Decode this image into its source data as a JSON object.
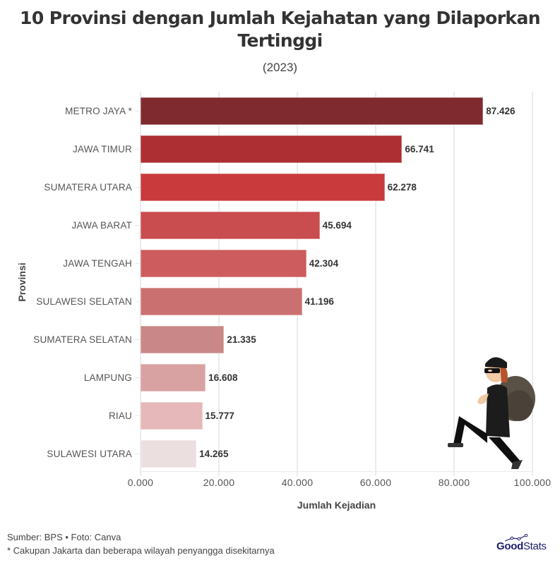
{
  "header": {
    "title_line1": "10 Provinsi dengan Jumlah Kejahatan yang Dilaporkan",
    "title_line2": "Tertinggi",
    "subtitle": "(2023)"
  },
  "axes": {
    "xlabel": "Jumlah Kejadian",
    "ylabel": "Provinsi",
    "xticks": [
      "0.000",
      "20.000",
      "40.000",
      "60.000",
      "80.000",
      "100.000"
    ]
  },
  "bars": [
    {
      "label": "METRO JAYA *",
      "value": 87426,
      "display": "87.426",
      "color": "#7f2a2f"
    },
    {
      "label": "JAWA TIMUR",
      "value": 66741,
      "display": "66.741",
      "color": "#ad2e33"
    },
    {
      "label": "SUMATERA UTARA",
      "value": 62278,
      "display": "62.278",
      "color": "#c93a3c"
    },
    {
      "label": "JAWA BARAT",
      "value": 45694,
      "display": "45.694",
      "color": "#c94c4e"
    },
    {
      "label": "JAWA TENGAH",
      "value": 42304,
      "display": "42.304",
      "color": "#cc5c5d"
    },
    {
      "label": "SULAWESI SELATAN",
      "value": 41196,
      "display": "41.196",
      "color": "#cb7070"
    },
    {
      "label": "SUMATERA SELATAN",
      "value": 21335,
      "display": "21.335",
      "color": "#c98788"
    },
    {
      "label": "LAMPUNG",
      "value": 16608,
      "display": "16.608",
      "color": "#d8a1a2"
    },
    {
      "label": "RIAU",
      "value": 15777,
      "display": "15.777",
      "color": "#e6b8b9"
    },
    {
      "label": "SULAWESI UTARA",
      "value": 14265,
      "display": "14.265",
      "color": "#ebdfe0"
    }
  ],
  "footer": {
    "source": "Sumber: BPS • Foto: Canva",
    "note": "* Cakupan Jakarta dan beberapa wilayah penyangga disekitarnya"
  },
  "logo": {
    "part1": "Good",
    "part2": "Stats",
    "color": "#1f1d6b"
  },
  "illustration": {
    "icon": "thief-with-sack-icon"
  },
  "chart_data": {
    "type": "bar",
    "orientation": "horizontal",
    "title": "10 Provinsi dengan Jumlah Kejahatan yang Dilaporkan Tertinggi",
    "subtitle": "(2023)",
    "categories": [
      "METRO JAYA *",
      "JAWA TIMUR",
      "SUMATERA UTARA",
      "JAWA BARAT",
      "JAWA TENGAH",
      "SULAWESI SELATAN",
      "SUMATERA SELATAN",
      "LAMPUNG",
      "RIAU",
      "SULAWESI UTARA"
    ],
    "values": [
      87426,
      66741,
      62278,
      45694,
      42304,
      41196,
      21335,
      16608,
      15777,
      14265
    ],
    "xlabel": "Jumlah Kejadian",
    "ylabel": "Provinsi",
    "xlim": [
      0,
      100000
    ],
    "xticks": [
      0,
      20000,
      40000,
      60000,
      80000,
      100000
    ],
    "grid": "vertical",
    "legend": "none",
    "source": "Sumber: BPS • Foto: Canva",
    "note": "* Cakupan Jakarta dan beberapa wilayah penyangga disekitarnya"
  }
}
